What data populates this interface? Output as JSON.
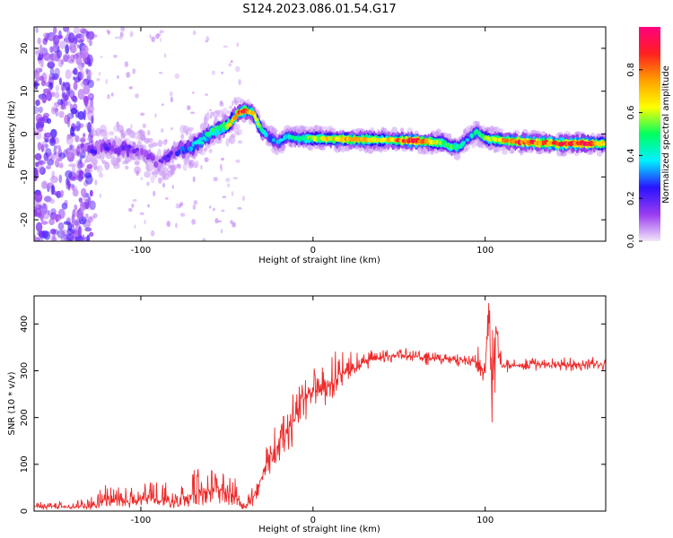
{
  "figure_title": "S124.2023.086.01.54.G17",
  "chart_data": [
    {
      "type": "heatmap",
      "title": "S124.2023.086.01.54.G17",
      "xlabel": "Height of straight line (km)",
      "ylabel": "Frequency (Hz)",
      "xlim": [
        -162,
        170
      ],
      "ylim": [
        -25,
        25
      ],
      "xticks": [
        -100,
        0,
        100
      ],
      "xtick_labels": [
        "-100",
        "0",
        "100"
      ],
      "yticks": [
        -20,
        -10,
        0,
        10,
        20
      ],
      "ytick_labels": [
        "-20",
        "-10",
        "0",
        "10",
        "20"
      ],
      "grid": false,
      "ridge": {
        "x": [
          -130,
          -120,
          -110,
          -100,
          -90,
          -80,
          -70,
          -60,
          -50,
          -45,
          -40,
          -35,
          -30,
          -25,
          -20,
          -15,
          -10,
          0,
          10,
          20,
          40,
          60,
          75,
          80,
          85,
          90,
          95,
          100,
          110,
          120,
          140,
          160,
          170
        ],
        "frequency": [
          -4,
          -3,
          -3.5,
          -4,
          -7,
          -4,
          -3,
          0,
          2,
          4.5,
          5.5,
          5,
          1,
          -1,
          -2,
          -0.5,
          -1,
          -1,
          -1.2,
          -1.2,
          -1.4,
          -1.6,
          -2,
          -3,
          -3,
          -1,
          0.5,
          -1,
          -1.5,
          -1.8,
          -2.2,
          -2.2,
          -2.2
        ],
        "amplitude": [
          0.2,
          0.2,
          0.2,
          0.15,
          0.15,
          0.25,
          0.35,
          0.45,
          0.55,
          0.75,
          0.85,
          0.7,
          0.45,
          0.35,
          0.35,
          0.4,
          0.45,
          0.55,
          0.65,
          0.75,
          0.6,
          0.9,
          0.55,
          0.5,
          0.45,
          0.35,
          0.45,
          0.5,
          0.7,
          0.85,
          0.8,
          0.9,
          0.6
        ]
      },
      "colorbar": {
        "label": "Normalized spectral amplitude",
        "range": [
          0,
          1
        ],
        "ticks": [
          0.0,
          0.2,
          0.4,
          0.6,
          0.8
        ],
        "tick_labels": [
          "0.0",
          "0.2",
          "0.4",
          "0.6",
          "0.8"
        ],
        "colormap": [
          "#f2e6f9",
          "#9a3cf0",
          "#2a12ff",
          "#00f0ff",
          "#00ff60",
          "#ffff00",
          "#ffa000",
          "#ff2020",
          "#ff0080"
        ]
      }
    },
    {
      "type": "line",
      "xlabel": "Height of straight line (km)",
      "ylabel": "SNR (10 * v/v)",
      "xlim": [
        -162,
        170
      ],
      "ylim": [
        0,
        460
      ],
      "xticks": [
        -100,
        0,
        100
      ],
      "xtick_labels": [
        "-100",
        "0",
        "100"
      ],
      "yticks": [
        0,
        100,
        200,
        300,
        400
      ],
      "ytick_labels": [
        "0",
        "100",
        "200",
        "300",
        "400"
      ],
      "grid": false,
      "series": [
        {
          "color": "#ee2a2a",
          "x": [
            -162,
            -150,
            -140,
            -130,
            -125,
            -120,
            -110,
            -100,
            -95,
            -90,
            -85,
            -80,
            -75,
            -70,
            -65,
            -60,
            -55,
            -50,
            -45,
            -40,
            -35,
            -30,
            -25,
            -20,
            -15,
            -10,
            -5,
            0,
            5,
            10,
            15,
            20,
            25,
            30,
            35,
            40,
            50,
            60,
            70,
            80,
            90,
            95,
            100,
            102,
            104,
            106,
            108,
            110,
            120,
            130,
            140,
            150,
            160,
            170
          ],
          "values": [
            10,
            10,
            8,
            10,
            15,
            30,
            20,
            22,
            35,
            20,
            25,
            15,
            30,
            35,
            40,
            45,
            50,
            35,
            30,
            12,
            30,
            70,
            120,
            140,
            170,
            200,
            240,
            260,
            250,
            270,
            290,
            300,
            305,
            320,
            325,
            330,
            335,
            330,
            325,
            325,
            322,
            318,
            300,
            430,
            250,
            420,
            320,
            310,
            312,
            314,
            312,
            313,
            314,
            315
          ],
          "envelope_max": [
            18,
            22,
            20,
            30,
            40,
            60,
            55,
            50,
            70,
            60,
            75,
            55,
            90,
            95,
            95,
            95,
            100,
            80,
            75,
            35,
            60,
            110,
            170,
            200,
            240,
            260,
            300,
            310,
            320,
            330,
            355,
            345,
            340,
            340,
            345,
            345,
            350,
            345,
            340,
            335,
            335,
            340,
            460,
            460,
            460,
            460,
            360,
            330,
            328,
            328,
            328,
            330,
            330,
            330
          ],
          "envelope_min": [
            4,
            4,
            2,
            4,
            6,
            8,
            6,
            6,
            8,
            6,
            8,
            6,
            8,
            10,
            12,
            12,
            15,
            10,
            8,
            4,
            10,
            40,
            80,
            100,
            120,
            150,
            190,
            220,
            210,
            230,
            260,
            275,
            290,
            300,
            310,
            315,
            320,
            315,
            310,
            310,
            305,
            300,
            260,
            200,
            180,
            200,
            290,
            295,
            298,
            300,
            298,
            298,
            300,
            300
          ]
        }
      ]
    }
  ]
}
